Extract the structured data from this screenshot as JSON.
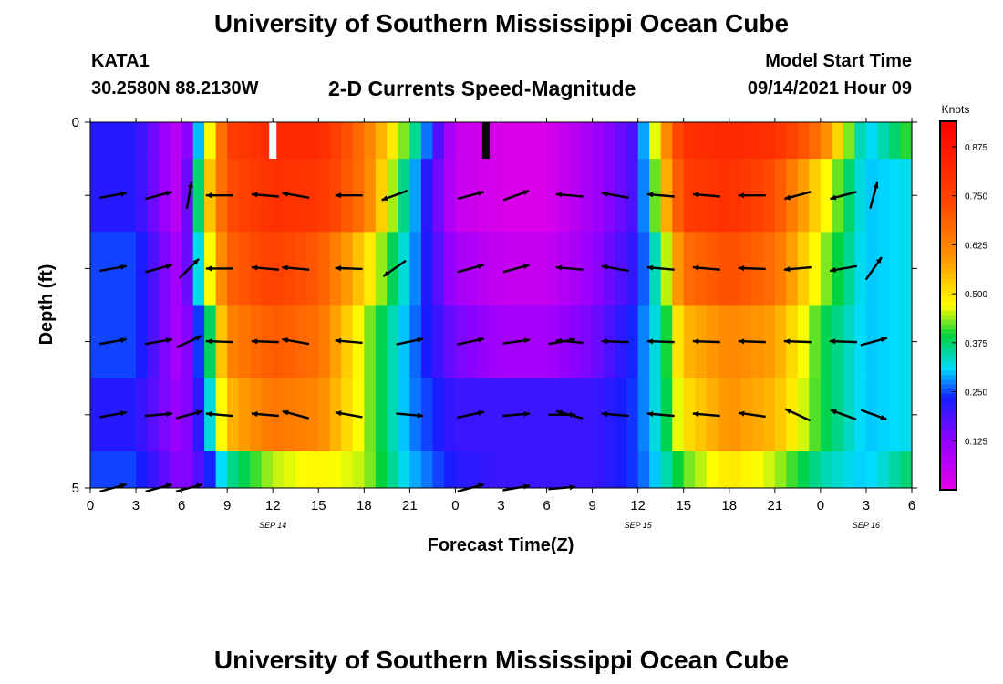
{
  "header": {
    "title": "University of Southern Mississippi Ocean Cube",
    "station": "KATA1",
    "coords": "30.2580N  88.2130W",
    "subtitle": "2-D Currents Speed-Magnitude",
    "model_start_label": "Model Start Time",
    "model_start_value": "09/14/2021 Hour 09"
  },
  "footer": {
    "title": "University of Southern Mississippi Ocean Cube"
  },
  "chart_data": {
    "type": "heatmap",
    "title": "2-D Currents Speed-Magnitude",
    "xlabel": "Forecast Time(Z)",
    "ylabel": "Depth (ft)",
    "x_range_hours": [
      0,
      54
    ],
    "y_range_ft": [
      0,
      5
    ],
    "x_ticks": [
      "0",
      "3",
      "6",
      "9",
      "12",
      "15",
      "18",
      "21",
      "0",
      "3",
      "6",
      "9",
      "12",
      "15",
      "18",
      "21",
      "0",
      "3",
      "6"
    ],
    "date_labels": [
      {
        "label": "SEP 14",
        "hour": 12
      },
      {
        "label": "SEP 15",
        "hour": 36
      },
      {
        "label": "SEP 16",
        "hour": 51
      }
    ],
    "y_tick_labels": [
      {
        "value": 0,
        "label": "0"
      },
      {
        "value": 1,
        "label": ""
      },
      {
        "value": 2,
        "label": ""
      },
      {
        "value": 3,
        "label": ""
      },
      {
        "value": 4,
        "label": ""
      },
      {
        "value": 5,
        "label": "5"
      }
    ],
    "colorbar": {
      "label": "Knots",
      "min": 0,
      "max": 0.94,
      "ticks": [
        "0.875",
        "0.750",
        "0.625",
        "0.500",
        "0.375",
        "0.250",
        "0.125"
      ],
      "tick_values": [
        0.875,
        0.75,
        0.625,
        0.5,
        0.375,
        0.25,
        0.125
      ]
    },
    "time_hours": [
      0,
      3,
      6,
      7.5,
      9,
      12,
      15,
      18,
      21,
      24,
      27,
      30,
      33,
      36,
      37.5,
      39,
      42,
      45,
      48,
      51,
      54
    ],
    "depth_rows": [
      {
        "depth_ft": [
          0,
          0.5
        ],
        "speeds": [
          0.22,
          0.22,
          0.05,
          0.38,
          0.75,
          0.82,
          0.82,
          0.65,
          0.4,
          0.05,
          0.02,
          0.02,
          0.1,
          0.2,
          0.55,
          0.8,
          0.82,
          0.8,
          0.65,
          0.3,
          0.42
        ]
      },
      {
        "depth_ft": [
          0.5,
          1.5
        ],
        "speeds": [
          0.22,
          0.22,
          0.05,
          0.48,
          0.72,
          0.8,
          0.78,
          0.65,
          0.32,
          0.05,
          0.02,
          0.02,
          0.1,
          0.2,
          0.5,
          0.76,
          0.8,
          0.72,
          0.5,
          0.3,
          0.32
        ]
      },
      {
        "depth_ft": [
          1.5,
          2.5
        ],
        "speeds": [
          0.25,
          0.25,
          0.08,
          0.4,
          0.68,
          0.75,
          0.7,
          0.52,
          0.3,
          0.1,
          0.05,
          0.05,
          0.12,
          0.22,
          0.38,
          0.66,
          0.72,
          0.66,
          0.45,
          0.3,
          0.32
        ]
      },
      {
        "depth_ft": [
          2.5,
          3.5
        ],
        "speeds": [
          0.25,
          0.25,
          0.08,
          0.3,
          0.62,
          0.7,
          0.66,
          0.45,
          0.28,
          0.15,
          0.1,
          0.1,
          0.15,
          0.25,
          0.35,
          0.55,
          0.62,
          0.58,
          0.4,
          0.3,
          0.32
        ]
      },
      {
        "depth_ft": [
          3.5,
          4.5
        ],
        "speeds": [
          0.22,
          0.22,
          0.1,
          0.25,
          0.55,
          0.65,
          0.62,
          0.45,
          0.28,
          0.2,
          0.2,
          0.2,
          0.2,
          0.25,
          0.35,
          0.5,
          0.6,
          0.55,
          0.4,
          0.3,
          0.32
        ]
      },
      {
        "depth_ft": [
          4.5,
          5.0
        ],
        "speeds": [
          0.25,
          0.25,
          0.12,
          0.2,
          0.35,
          0.45,
          0.48,
          0.45,
          0.3,
          0.22,
          0.2,
          0.2,
          0.2,
          0.25,
          0.32,
          0.42,
          0.5,
          0.45,
          0.35,
          0.3,
          0.38
        ]
      }
    ],
    "vectors": [
      {
        "depth": 1,
        "entries": [
          [
            1.5,
            10
          ],
          [
            4.5,
            15
          ],
          [
            6.5,
            80
          ],
          [
            8.5,
            180
          ],
          [
            11.5,
            175
          ],
          [
            13.5,
            170
          ],
          [
            17.0,
            180
          ],
          [
            20.0,
            -160
          ],
          [
            25.0,
            15
          ],
          [
            28.0,
            20
          ],
          [
            31.5,
            175
          ],
          [
            34.5,
            170
          ],
          [
            37.5,
            175
          ],
          [
            40.5,
            175
          ],
          [
            43.5,
            180
          ],
          [
            46.5,
            -165
          ],
          [
            49.5,
            -165
          ],
          [
            51.5,
            75
          ]
        ]
      },
      {
        "depth": 2,
        "entries": [
          [
            1.5,
            10
          ],
          [
            4.5,
            15
          ],
          [
            6.5,
            45
          ],
          [
            8.5,
            180
          ],
          [
            11.5,
            175
          ],
          [
            13.5,
            175
          ],
          [
            17.0,
            178
          ],
          [
            20.0,
            -145
          ],
          [
            25.0,
            15
          ],
          [
            28.0,
            15
          ],
          [
            31.5,
            175
          ],
          [
            34.5,
            170
          ],
          [
            37.5,
            175
          ],
          [
            40.5,
            175
          ],
          [
            43.5,
            178
          ],
          [
            46.5,
            -175
          ],
          [
            49.5,
            -170
          ],
          [
            51.5,
            55
          ]
        ]
      },
      {
        "depth": 3,
        "entries": [
          [
            1.5,
            10
          ],
          [
            4.5,
            10
          ],
          [
            6.5,
            25
          ],
          [
            8.5,
            178
          ],
          [
            11.5,
            178
          ],
          [
            13.5,
            170
          ],
          [
            17.0,
            175
          ],
          [
            21.0,
            12
          ],
          [
            25.0,
            12
          ],
          [
            28.0,
            8
          ],
          [
            31.0,
            10
          ],
          [
            31.5,
            175
          ],
          [
            34.5,
            178
          ],
          [
            37.5,
            178
          ],
          [
            40.5,
            178
          ],
          [
            43.5,
            178
          ],
          [
            46.5,
            178
          ],
          [
            49.5,
            178
          ],
          [
            51.5,
            15
          ]
        ]
      },
      {
        "depth": 4,
        "entries": [
          [
            1.5,
            10
          ],
          [
            4.5,
            5
          ],
          [
            6.5,
            15
          ],
          [
            8.5,
            175
          ],
          [
            11.5,
            175
          ],
          [
            13.5,
            165
          ],
          [
            17.0,
            170
          ],
          [
            21.0,
            -5
          ],
          [
            25.0,
            12
          ],
          [
            28.0,
            5
          ],
          [
            31.0,
            0
          ],
          [
            31.5,
            165
          ],
          [
            34.5,
            175
          ],
          [
            37.5,
            175
          ],
          [
            40.5,
            175
          ],
          [
            43.5,
            172
          ],
          [
            46.5,
            155
          ],
          [
            49.5,
            160
          ],
          [
            51.5,
            -20
          ]
        ]
      },
      {
        "depth": 5,
        "entries": [
          [
            1.5,
            15
          ],
          [
            4.5,
            15
          ],
          [
            6.5,
            15
          ],
          [
            25.0,
            15
          ],
          [
            28.0,
            10
          ],
          [
            31.0,
            5
          ]
        ]
      }
    ],
    "markers": [
      {
        "type": "white-bar",
        "hour": 12.0
      },
      {
        "type": "black-bar",
        "hour": 26.0
      }
    ],
    "legend_placement": "right"
  }
}
